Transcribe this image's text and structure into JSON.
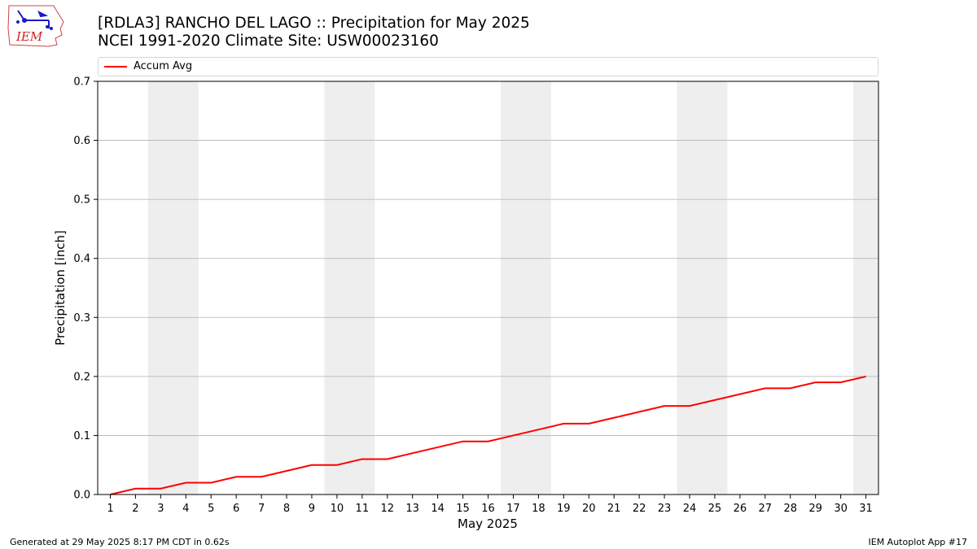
{
  "header": {
    "title_line1": "[RDLA3] RANCHO DEL LAGO :: Precipitation for May 2025",
    "title_line2": "NCEI 1991-2020 Climate Site: USW00023160"
  },
  "logo": {
    "text": "IEM",
    "icon": "iem-iowa-logo"
  },
  "footer": {
    "left": "Generated at 29 May 2025 8:17 PM CDT in 0.62s",
    "right": "IEM Autoplot App #17"
  },
  "colors": {
    "series": "#ff0000",
    "weekend_band": "#eeeeee",
    "grid": "#b0b0b0"
  },
  "chart_data": {
    "type": "line",
    "xlabel": "May 2025",
    "ylabel": "Precipitation [inch]",
    "xlim": [
      0.5,
      31.5
    ],
    "ylim": [
      0,
      0.7
    ],
    "yticks": [
      0.0,
      0.1,
      0.2,
      0.3,
      0.4,
      0.5,
      0.6,
      0.7
    ],
    "ytick_labels": [
      "0.0",
      "0.1",
      "0.2",
      "0.3",
      "0.4",
      "0.5",
      "0.6",
      "0.7"
    ],
    "x": [
      1,
      2,
      3,
      4,
      5,
      6,
      7,
      8,
      9,
      10,
      11,
      12,
      13,
      14,
      15,
      16,
      17,
      18,
      19,
      20,
      21,
      22,
      23,
      24,
      25,
      26,
      27,
      28,
      29,
      30,
      31
    ],
    "xtick_labels": [
      "1",
      "2",
      "3",
      "4",
      "5",
      "6",
      "7",
      "8",
      "9",
      "10",
      "11",
      "12",
      "13",
      "14",
      "15",
      "16",
      "17",
      "18",
      "19",
      "20",
      "21",
      "22",
      "23",
      "24",
      "25",
      "26",
      "27",
      "28",
      "29",
      "30",
      "31"
    ],
    "series": [
      {
        "name": "Accum Avg",
        "values": [
          0.0,
          0.01,
          0.01,
          0.02,
          0.02,
          0.03,
          0.03,
          0.04,
          0.05,
          0.05,
          0.06,
          0.06,
          0.07,
          0.08,
          0.09,
          0.09,
          0.1,
          0.11,
          0.12,
          0.12,
          0.13,
          0.14,
          0.15,
          0.15,
          0.16,
          0.17,
          0.18,
          0.18,
          0.19,
          0.19,
          0.2
        ]
      }
    ],
    "weekend_days": [
      [
        3,
        4
      ],
      [
        10,
        11
      ],
      [
        17,
        18
      ],
      [
        24,
        25
      ],
      [
        31,
        31
      ]
    ],
    "grid": "horizontal",
    "legend": "top"
  }
}
